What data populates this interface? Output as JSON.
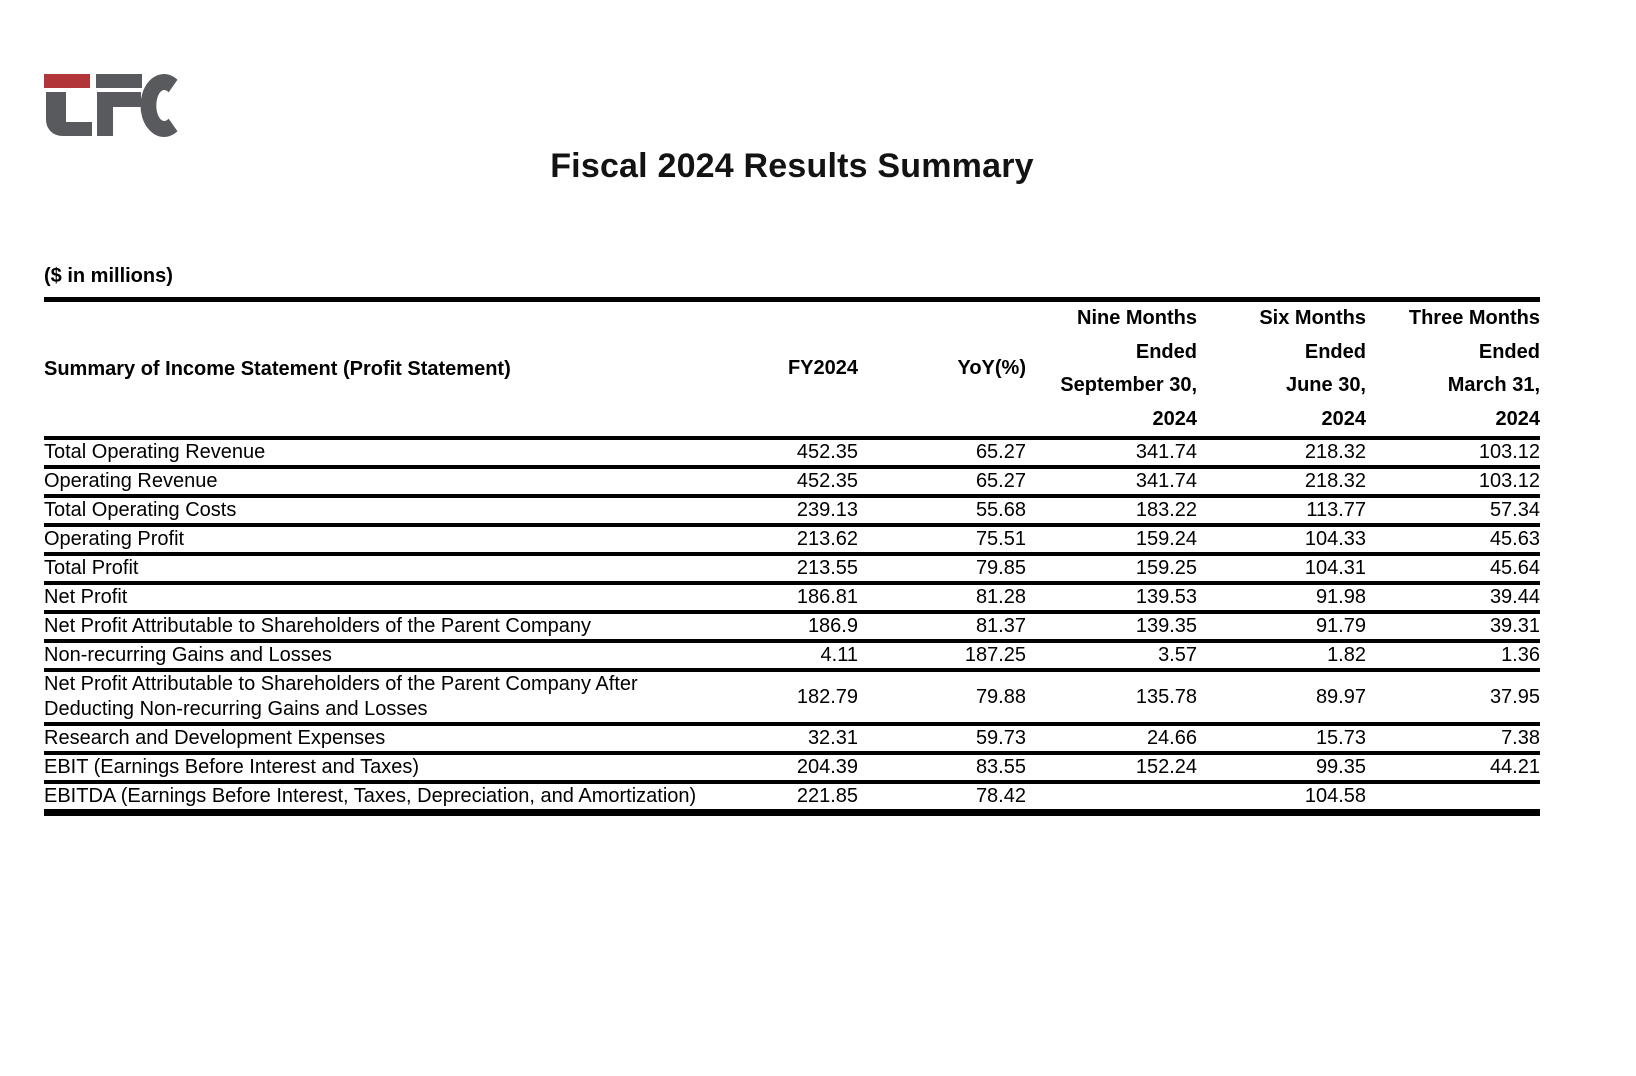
{
  "brand": {
    "name": "TFC",
    "red": "#b23539",
    "gray": "#595a5e"
  },
  "title": "Fiscal 2024 Results Summary",
  "units_note": "($ in millions)",
  "table": {
    "row_header": "Summary of Income Statement (Profit Statement)",
    "columns": [
      "FY2024",
      "YoY(%)",
      "Nine Months\nEnded\nSeptember 30,\n2024",
      "Six Months\nEnded\nJune 30,\n2024",
      "Three Months\nEnded\nMarch 31,\n2024"
    ],
    "rows": [
      {
        "label": "Total Operating Revenue",
        "values": [
          "452.35",
          "65.27",
          "341.74",
          "218.32",
          "103.12"
        ]
      },
      {
        "label": "Operating Revenue",
        "values": [
          "452.35",
          "65.27",
          "341.74",
          "218.32",
          "103.12"
        ]
      },
      {
        "label": "Total Operating Costs",
        "values": [
          "239.13",
          "55.68",
          "183.22",
          "113.77",
          "57.34"
        ]
      },
      {
        "label": "Operating Profit",
        "values": [
          "213.62",
          "75.51",
          "159.24",
          "104.33",
          "45.63"
        ]
      },
      {
        "label": "Total Profit",
        "values": [
          "213.55",
          "79.85",
          "159.25",
          "104.31",
          "45.64"
        ]
      },
      {
        "label": "Net Profit",
        "values": [
          "186.81",
          "81.28",
          "139.53",
          "91.98",
          "39.44"
        ]
      },
      {
        "label": "Net Profit Attributable to Shareholders of the Parent Company",
        "values": [
          "186.9",
          "81.37",
          "139.35",
          "91.79",
          "39.31"
        ]
      },
      {
        "label": "Non-recurring Gains and Losses",
        "values": [
          "4.11",
          "187.25",
          "3.57",
          "1.82",
          "1.36"
        ]
      },
      {
        "label": "Net Profit Attributable to Shareholders of the Parent Company After Deducting Non-recurring Gains and Losses",
        "values": [
          "182.79",
          "79.88",
          "135.78",
          "89.97",
          "37.95"
        ]
      },
      {
        "label": "Research and Development Expenses",
        "values": [
          "32.31",
          "59.73",
          "24.66",
          "15.73",
          "7.38"
        ]
      },
      {
        "label": "EBIT (Earnings Before Interest and Taxes)",
        "values": [
          "204.39",
          "83.55",
          "152.24",
          "99.35",
          "44.21"
        ]
      },
      {
        "label": "EBITDA (Earnings Before Interest, Taxes, Depreciation, and Amortization)",
        "values": [
          "221.85",
          "78.42",
          "",
          "104.58",
          ""
        ]
      }
    ]
  }
}
